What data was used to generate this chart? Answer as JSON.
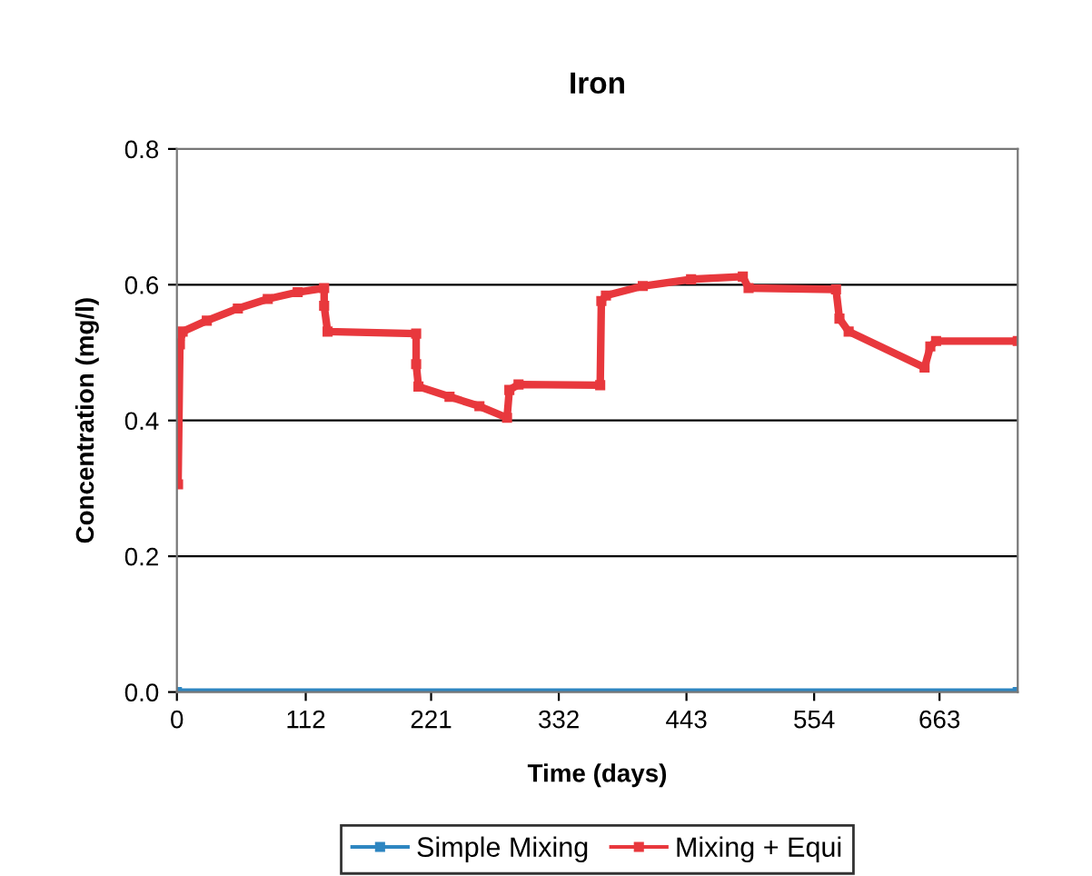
{
  "chart_data": {
    "type": "line",
    "title": "Iron",
    "xlabel": "Time (days)",
    "ylabel": "Concentration (mg/l)",
    "xlim": [
      0,
      731
    ],
    "xticks": [
      0,
      112,
      221,
      332,
      443,
      554,
      663
    ],
    "ylim": [
      0,
      0.8
    ],
    "yticks": [
      {
        "value": 0,
        "label": "0.0"
      },
      {
        "value": 0.2,
        "label": "0.2"
      },
      {
        "value": 0.4,
        "label": "0.4"
      },
      {
        "value": 0.6,
        "label": "0.6"
      },
      {
        "value": 0.8,
        "label": "0.8"
      }
    ],
    "grid": "y",
    "legend": "bottom",
    "marker": "square",
    "series": [
      {
        "name": "Simple Mixing",
        "color": "#2e86c1",
        "x": [
          0,
          731
        ],
        "values": [
          0,
          0
        ]
      },
      {
        "name": "Mixing + Equi",
        "color": "#e8383d",
        "x": [
          1,
          2.6,
          5,
          26,
          53,
          79,
          105,
          128,
          128,
          131,
          208,
          208,
          210,
          237,
          263,
          287,
          289,
          297,
          368,
          369,
          373,
          405,
          447,
          492,
          497,
          573,
          576,
          584,
          650,
          655,
          660,
          731
        ],
        "values": [
          0.306,
          0.512,
          0.531,
          0.547,
          0.565,
          0.579,
          0.589,
          0.595,
          0.569,
          0.531,
          0.528,
          0.483,
          0.45,
          0.435,
          0.421,
          0.404,
          0.445,
          0.453,
          0.452,
          0.576,
          0.584,
          0.598,
          0.608,
          0.612,
          0.595,
          0.593,
          0.55,
          0.531,
          0.478,
          0.509,
          0.517,
          0.517
        ]
      }
    ]
  }
}
